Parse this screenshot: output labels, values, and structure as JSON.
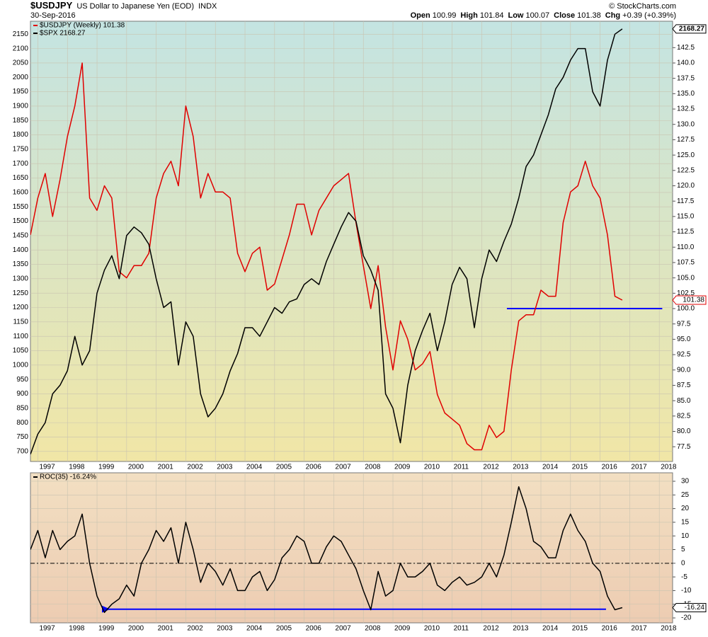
{
  "header": {
    "symbol": "$USDJPY",
    "name": "US Dollar to Japanese Yen (EOD)",
    "exchange": "INDX",
    "date": "30-Sep-2016",
    "copyright": "© StockCharts.com",
    "quote": [
      {
        "label": "Open",
        "value": "100.99"
      },
      {
        "label": "High",
        "value": "101.84"
      },
      {
        "label": "Low",
        "value": "100.07"
      },
      {
        "label": "Close",
        "value": "101.38"
      },
      {
        "label": "Chg",
        "value": "+0.39 (+0.39%)"
      }
    ]
  },
  "chart_data": [
    {
      "type": "line",
      "x": [
        1996.75,
        1997,
        1997.25,
        1997.5,
        1997.75,
        1998,
        1998.25,
        1998.5,
        1998.75,
        1999,
        1999.25,
        1999.5,
        1999.75,
        2000,
        2000.25,
        2000.5,
        2000.75,
        2001,
        2001.25,
        2001.5,
        2001.75,
        2002,
        2002.25,
        2002.5,
        2002.75,
        2003,
        2003.25,
        2003.5,
        2003.75,
        2004,
        2004.25,
        2004.5,
        2004.75,
        2005,
        2005.25,
        2005.5,
        2005.75,
        2006,
        2006.25,
        2006.5,
        2006.75,
        2007,
        2007.25,
        2007.5,
        2007.75,
        2008,
        2008.25,
        2008.5,
        2008.75,
        2009,
        2009.25,
        2009.5,
        2009.75,
        2010,
        2010.25,
        2010.5,
        2010.75,
        2011,
        2011.25,
        2011.5,
        2011.75,
        2012,
        2012.25,
        2012.5,
        2012.75,
        2013,
        2013.25,
        2013.5,
        2013.75,
        2014,
        2014.25,
        2014.5,
        2014.75,
        2015,
        2015.25,
        2015.5,
        2015.75,
        2016,
        2016.25,
        2016.5,
        2016.75
      ],
      "xlim": [
        1996.75,
        2018.45
      ],
      "xticks": [
        1997,
        1998,
        1999,
        2000,
        2001,
        2002,
        2003,
        2004,
        2005,
        2006,
        2007,
        2008,
        2009,
        2010,
        2011,
        2012,
        2013,
        2014,
        2015,
        2016,
        2017,
        2018
      ],
      "ylim": [
        665,
        2195
      ],
      "yticks": [
        700,
        750,
        800,
        850,
        900,
        950,
        1000,
        1050,
        1100,
        1150,
        1200,
        1250,
        1300,
        1350,
        1400,
        1450,
        1500,
        1550,
        1600,
        1650,
        1700,
        1750,
        1800,
        1850,
        1900,
        1950,
        2000,
        2050,
        2100,
        2150
      ],
      "y2lim": [
        75.1,
        146.8
      ],
      "y2ticks": [
        77.5,
        {
          "value": 80,
          "label": "80.0"
        },
        82.5,
        {
          "value": 85,
          "label": "85.0"
        },
        87.5,
        {
          "value": 90,
          "label": "90.0"
        },
        92.5,
        {
          "value": 95,
          "label": "95.0"
        },
        97.5,
        {
          "value": 100,
          "label": "100.0"
        },
        102.5,
        {
          "value": 105,
          "label": "105.0"
        },
        107.5,
        {
          "value": 110,
          "label": "110.0"
        },
        112.5,
        {
          "value": 115,
          "label": "115.0"
        },
        117.5,
        {
          "value": 120,
          "label": "120.0"
        },
        122.5,
        {
          "value": 125,
          "label": "125.0"
        },
        127.5,
        {
          "value": 130,
          "label": "130.0"
        },
        132.5,
        {
          "value": 135,
          "label": "135.0"
        },
        137.5,
        {
          "value": 140,
          "label": "140.0"
        },
        142.5
      ],
      "grid": true,
      "legend": "top-left",
      "background": [
        "#c4e4e2",
        "#f1e6a6"
      ],
      "series": [
        {
          "name": "$USDJPY (Weekly) 101.38",
          "color": "#e00000",
          "axis": "y2",
          "values": [
            112,
            118,
            122,
            115,
            121,
            128,
            133,
            140,
            118,
            116,
            120,
            118,
            106,
            105,
            107,
            107,
            109,
            118,
            122,
            124,
            120,
            133,
            128,
            118,
            122,
            119,
            119,
            118,
            109,
            106,
            109,
            110,
            103,
            104,
            108,
            112,
            117,
            117,
            112,
            116,
            118,
            120,
            121,
            122,
            114,
            107,
            100,
            107,
            97,
            90,
            98,
            95,
            90,
            91,
            93,
            86,
            83,
            82,
            81,
            78,
            77,
            77,
            81,
            79,
            80,
            90,
            98,
            99,
            99,
            103,
            102,
            102,
            114,
            119,
            120,
            124,
            120,
            118,
            112,
            102,
            101.38
          ]
        },
        {
          "name": "$SPX 2168.27",
          "color": "#000000",
          "values": [
            690,
            760,
            800,
            900,
            930,
            980,
            1100,
            1000,
            1050,
            1250,
            1330,
            1380,
            1300,
            1450,
            1480,
            1460,
            1420,
            1300,
            1200,
            1220,
            1000,
            1150,
            1100,
            900,
            820,
            850,
            900,
            980,
            1040,
            1130,
            1130,
            1100,
            1150,
            1200,
            1180,
            1220,
            1230,
            1280,
            1300,
            1280,
            1360,
            1420,
            1480,
            1530,
            1500,
            1380,
            1330,
            1260,
            900,
            850,
            730,
            930,
            1050,
            1120,
            1180,
            1050,
            1150,
            1280,
            1340,
            1300,
            1130,
            1300,
            1400,
            1360,
            1430,
            1490,
            1580,
            1690,
            1730,
            1800,
            1870,
            1960,
            2000,
            2060,
            2100,
            2100,
            1950,
            1900,
            2060,
            2150,
            2168.27
          ]
        }
      ],
      "tags": [
        {
          "value": 2168.27,
          "label": "2168.27",
          "axis": "y",
          "color": "#000000"
        },
        {
          "value": 101.38,
          "label": "101.38",
          "axis": "y2",
          "color": "#e00000"
        }
      ],
      "hlines": [
        {
          "value": 100,
          "axis": "y2",
          "x": [
            2012.85,
            2018.1
          ],
          "color": "#0000ff"
        }
      ]
    },
    {
      "type": "line",
      "x": [
        1996.75,
        1997,
        1997.25,
        1997.5,
        1997.75,
        1998,
        1998.25,
        1998.5,
        1998.75,
        1999,
        1999.25,
        1999.5,
        1999.75,
        2000,
        2000.25,
        2000.5,
        2000.75,
        2001,
        2001.25,
        2001.5,
        2001.75,
        2002,
        2002.25,
        2002.5,
        2002.75,
        2003,
        2003.25,
        2003.5,
        2003.75,
        2004,
        2004.25,
        2004.5,
        2004.75,
        2005,
        2005.25,
        2005.5,
        2005.75,
        2006,
        2006.25,
        2006.5,
        2006.75,
        2007,
        2007.25,
        2007.5,
        2007.75,
        2008,
        2008.25,
        2008.5,
        2008.75,
        2009,
        2009.25,
        2009.5,
        2009.75,
        2010,
        2010.25,
        2010.5,
        2010.75,
        2011,
        2011.25,
        2011.5,
        2011.75,
        2012,
        2012.25,
        2012.5,
        2012.75,
        2013,
        2013.25,
        2013.5,
        2013.75,
        2014,
        2014.25,
        2014.5,
        2014.75,
        2015,
        2015.25,
        2015.5,
        2015.75,
        2016,
        2016.25,
        2016.5,
        2016.75
      ],
      "xlim": [
        1996.75,
        2018.45
      ],
      "xticks": [
        1997,
        1998,
        1999,
        2000,
        2001,
        2002,
        2003,
        2004,
        2005,
        2006,
        2007,
        2008,
        2009,
        2010,
        2011,
        2012,
        2013,
        2014,
        2015,
        2016,
        2017,
        2018
      ],
      "ylim": [
        -21.8,
        33.1
      ],
      "yticks": [
        -20,
        -15,
        -10,
        -5,
        0,
        5,
        10,
        15,
        20,
        25,
        30
      ],
      "grid": true,
      "legend": "top-left",
      "background": [
        "#f2dfc2",
        "#edccb2"
      ],
      "series": [
        {
          "name": "ROC(35) -16.24%",
          "color": "#000000",
          "values": [
            5,
            12,
            2,
            12,
            5,
            8,
            10,
            18,
            0,
            -12,
            -18,
            -15,
            -13,
            -8,
            -12,
            0,
            5,
            12,
            8,
            13,
            0,
            15,
            5,
            -7,
            0,
            -3,
            -8,
            -2,
            -10,
            -10,
            -5,
            -3,
            -10,
            -6,
            2,
            5,
            10,
            8,
            0,
            0,
            6,
            10,
            8,
            3,
            -2,
            -10,
            -17,
            -3,
            -12,
            -10,
            0,
            -5,
            -5,
            -3,
            0,
            -8,
            -10,
            -7,
            -5,
            -8,
            -7,
            -5,
            0,
            -5,
            3,
            15,
            28,
            20,
            8,
            6,
            2,
            2,
            12,
            18,
            12,
            8,
            0,
            -3,
            -12,
            -17,
            -16.24
          ]
        }
      ],
      "tags": [
        {
          "value": -16.24,
          "label": "-16.24",
          "axis": "y",
          "color": "#000000"
        }
      ],
      "hlines": [
        {
          "value": 0,
          "axis": "y",
          "color": "#000000",
          "dash": true
        },
        {
          "value": -16.8,
          "axis": "y",
          "x": [
            2016.2,
            1999.4
          ],
          "color": "#0000ff",
          "arrow": true
        }
      ]
    }
  ]
}
